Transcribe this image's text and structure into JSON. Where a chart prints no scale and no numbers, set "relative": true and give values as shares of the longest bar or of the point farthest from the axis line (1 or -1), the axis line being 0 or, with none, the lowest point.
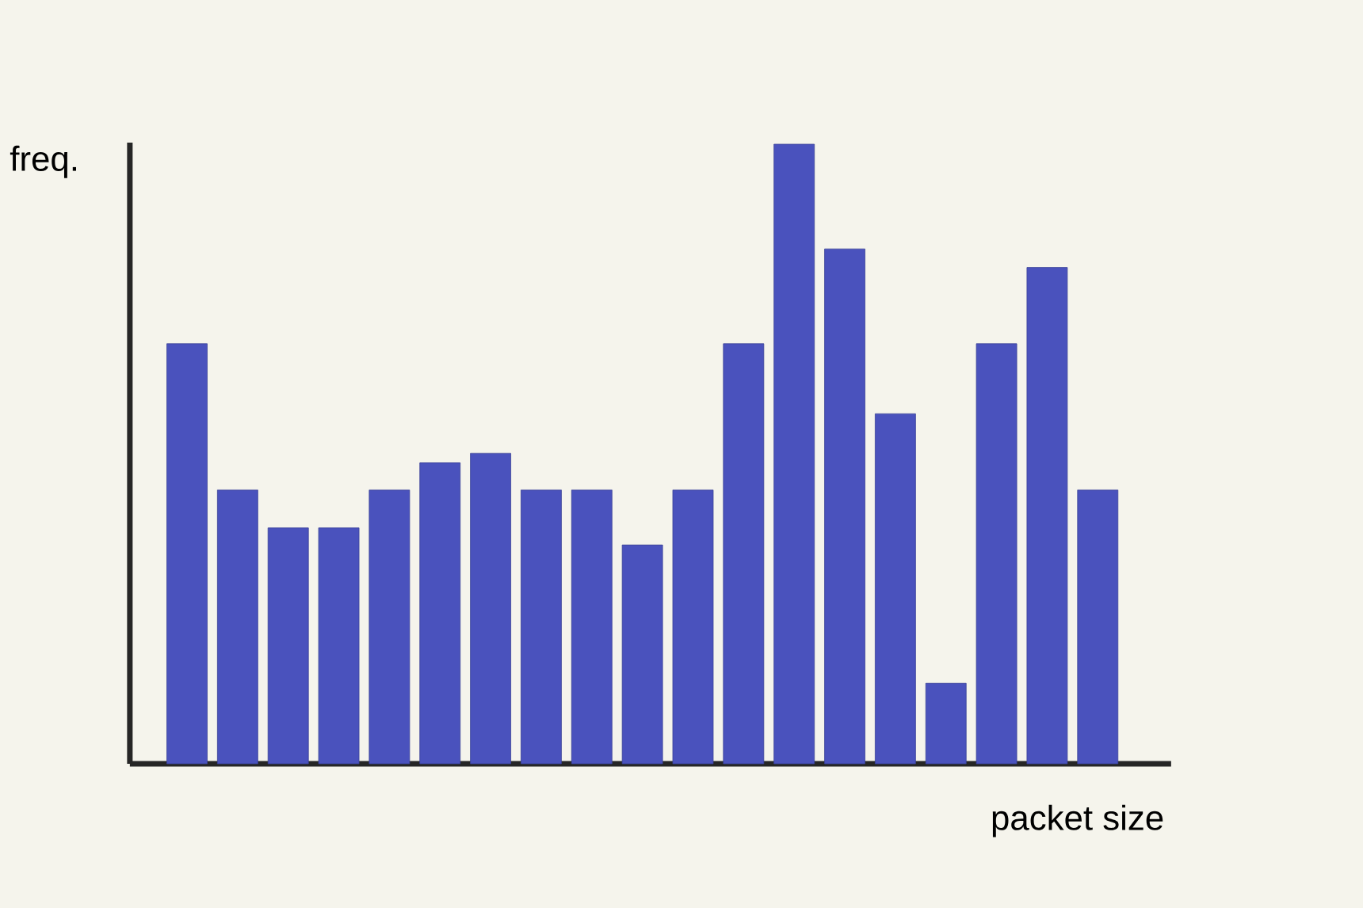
{
  "chart_data": {
    "type": "bar",
    "relative": true,
    "xlabel": "packet size",
    "ylabel": "freq.",
    "color": "#4a52bd",
    "categories": [
      null,
      null,
      null,
      null,
      null,
      null,
      null,
      null,
      null,
      null,
      null,
      null,
      null,
      null,
      null,
      null,
      null,
      null,
      null
    ],
    "values": [
      0.678,
      0.442,
      0.381,
      0.381,
      0.442,
      0.486,
      0.501,
      0.442,
      0.442,
      0.353,
      0.442,
      0.678,
      1,
      0.831,
      0.565,
      0.13,
      0.678,
      0.801,
      0.442
    ]
  }
}
